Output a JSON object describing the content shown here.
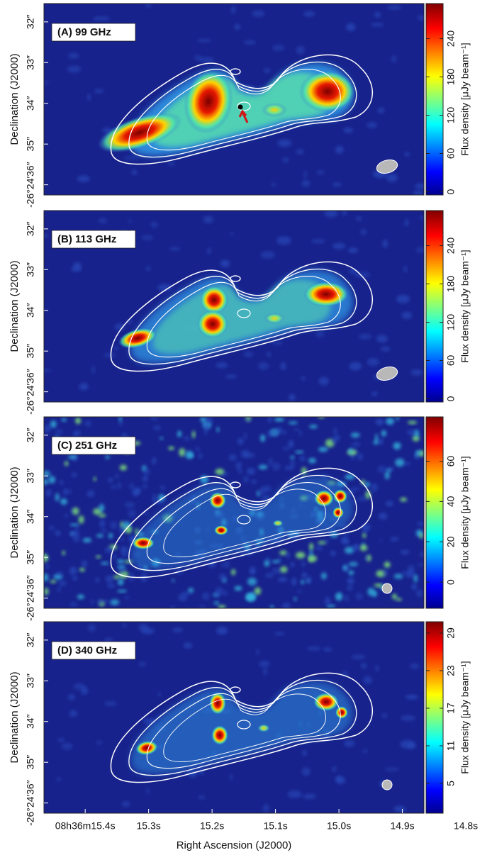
{
  "chart_data": [
    {
      "type": "image",
      "label": "(A) 99 GHz",
      "ylabel": "Declination (J2000)",
      "colorbar_label": "Flux density [μJy beam⁻¹]",
      "colormap": "jet",
      "xlim": [
        15.465,
        14.866
      ],
      "ylim": [
        31.55,
        36.25
      ],
      "yticks": [
        {
          "value": 32,
          "label": "32″"
        },
        {
          "value": 33,
          "label": "33″"
        },
        {
          "value": 34,
          "label": "34″"
        },
        {
          "value": 35,
          "label": "35″"
        },
        {
          "value": 36,
          "label": "-26°24′36″"
        }
      ],
      "clim": [
        -5,
        295
      ],
      "cticks": [
        0,
        60,
        120,
        180,
        240
      ]
    },
    {
      "type": "image",
      "label": "(B) 113 GHz",
      "ylabel": "Declination (J2000)",
      "colorbar_label": "Flux density [μJy beam⁻¹]",
      "colormap": "jet",
      "xlim": [
        15.465,
        14.866
      ],
      "ylim": [
        31.55,
        36.25
      ],
      "yticks": [
        {
          "value": 32,
          "label": "32″"
        },
        {
          "value": 33,
          "label": "33″"
        },
        {
          "value": 34,
          "label": "34″"
        },
        {
          "value": 35,
          "label": "35″"
        },
        {
          "value": 36,
          "label": "-26°24′36″"
        }
      ],
      "clim": [
        -5,
        295
      ],
      "cticks": [
        0,
        60,
        120,
        180,
        240
      ]
    },
    {
      "type": "image",
      "label": "(C) 251 GHz",
      "ylabel": "Declination (J2000)",
      "colorbar_label": "Flux density [μJy beam⁻¹]",
      "colormap": "jet",
      "xlim": [
        15.465,
        14.866
      ],
      "ylim": [
        31.55,
        36.25
      ],
      "yticks": [
        {
          "value": 32,
          "label": "32″"
        },
        {
          "value": 33,
          "label": "33″"
        },
        {
          "value": 34,
          "label": "34″"
        },
        {
          "value": 35,
          "label": "35″"
        },
        {
          "value": 36,
          "label": "-26°24′36″"
        }
      ],
      "clim": [
        -13,
        82
      ],
      "cticks": [
        0,
        20,
        40,
        60
      ]
    },
    {
      "type": "image",
      "label": "(D) 340 GHz",
      "ylabel": "Declination (J2000)",
      "colorbar_label": "Flux density [μJy beam⁻¹]",
      "colormap": "jet",
      "xlabel": "Right Ascension (J2000)",
      "xlim": [
        15.465,
        14.866
      ],
      "ylim": [
        31.55,
        36.25
      ],
      "xticks": [
        {
          "value": 15.4,
          "label": "08h36m15.4s"
        },
        {
          "value": 15.3,
          "label": "15.3s"
        },
        {
          "value": 15.2,
          "label": "15.2s"
        },
        {
          "value": 15.1,
          "label": "15.1s"
        },
        {
          "value": 15.0,
          "label": "15.0s"
        },
        {
          "value": 14.9,
          "label": "14.9s"
        },
        {
          "value": 14.8,
          "label": "14.8s"
        }
      ],
      "yticks": [
        {
          "value": 32,
          "label": "32″"
        },
        {
          "value": 33,
          "label": "33″"
        },
        {
          "value": 34,
          "label": "34″"
        },
        {
          "value": 35,
          "label": "35″"
        },
        {
          "value": 36,
          "label": "-26°24′36″"
        }
      ],
      "clim": [
        0.25,
        30.8
      ],
      "cticks": [
        5,
        11,
        17,
        23,
        29
      ]
    }
  ]
}
